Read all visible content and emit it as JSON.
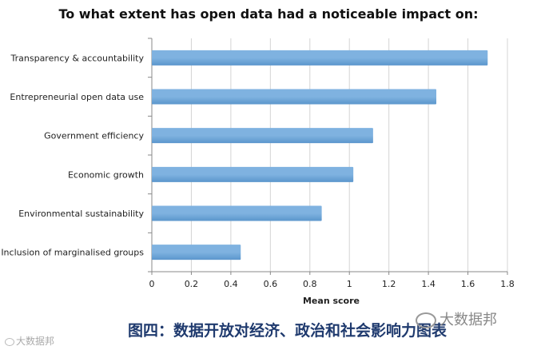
{
  "chart_data": {
    "type": "bar",
    "orientation": "horizontal",
    "title": "To what extent has open data had a noticeable impact on:",
    "xlabel": "Mean score",
    "ylabel": "",
    "xlim": [
      0,
      1.8
    ],
    "ticks": [
      "0",
      "0.2",
      "0.4",
      "0.6",
      "0.8",
      "1",
      "1.2",
      "1.4",
      "1.6",
      "1.8"
    ],
    "categories": [
      "Transparency & accountability",
      "Entrepreneurial open data use",
      "Government efficiency",
      "Economic growth",
      "Environmental sustainability",
      "Inclusion of marginalised groups"
    ],
    "values": [
      1.7,
      1.44,
      1.12,
      1.02,
      0.86,
      0.45
    ],
    "bar_color": "#7fb2e0",
    "bar_color_dark": "#5b96cc",
    "grid": true
  },
  "caption": "图四：数据开放对经济、政治和社会影响力图表",
  "watermark_right": "大数据邦",
  "watermark_left": "大数据邦"
}
